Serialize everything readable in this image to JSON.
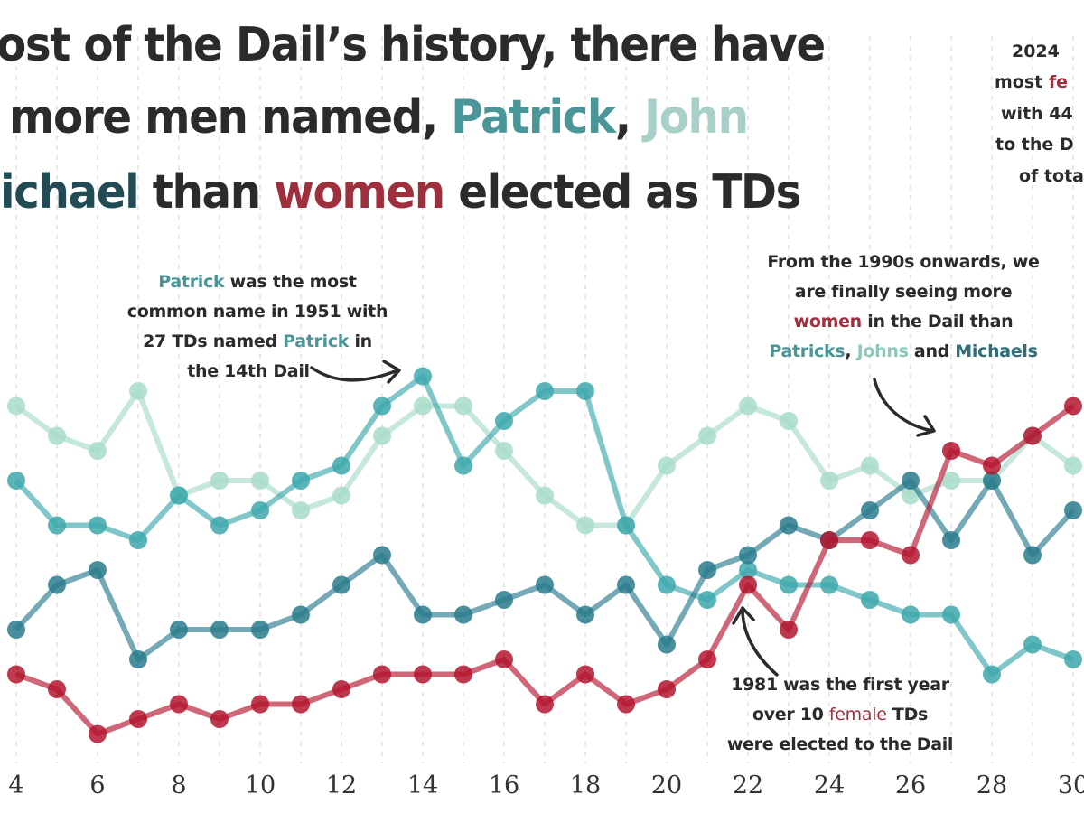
{
  "title": {
    "line1": "ost of the Dail’s history, there have",
    "line2_prefix": "more men named, ",
    "line2_patrick": "Patrick",
    "line2_comma": ", ",
    "line2_john": "John",
    "line3_michael": "ichael",
    "line3_than": " than ",
    "line3_women": "women",
    "line3_suffix": " elected as TDs"
  },
  "annotations": {
    "patrick_peak": {
      "l1_name": "Patrick",
      "l1_rest": " was the most",
      "l2": "common name in 1951 with",
      "l3_prefix": "27 TDs named ",
      "l3_name": "Patrick",
      "l3_suffix": " in",
      "l4": "the 14th Dail"
    },
    "nineties": {
      "l1": "From the 1990s onwards, we",
      "l2": "are finally seeing more",
      "l3_women": "women",
      "l3_rest": " in the Dail than",
      "l4_patricks": "Patricks",
      "l4_comma": ", ",
      "l4_johns": "Johns",
      "l4_and": " and ",
      "l4_michaels": "Michaels"
    },
    "first_ten": {
      "l1": "1981 was the first year",
      "l2_prefix": "over 10 ",
      "l2_female": "female",
      "l2_suffix": " TDs",
      "l3": "were elected to the Dail"
    },
    "record_2024": {
      "l1": "2024 ",
      "l2_prefix": "most ",
      "l2_fe": "fe",
      "l3": "with 44",
      "l4": "to the D",
      "l5": "of tota"
    }
  },
  "chart_data": {
    "type": "line",
    "title": "",
    "xlabel": "",
    "ylabel": "",
    "x_ticks": [
      4,
      6,
      8,
      10,
      12,
      14,
      16,
      18,
      20,
      22,
      24,
      26,
      28,
      30
    ],
    "xlim": [
      3,
      31
    ],
    "grid": "vertical dashed",
    "x": [
      4,
      5,
      6,
      7,
      8,
      9,
      10,
      11,
      12,
      13,
      14,
      15,
      16,
      17,
      18,
      19,
      20,
      21,
      22,
      23,
      24,
      25,
      26,
      27,
      28,
      29,
      30
    ],
    "series": [
      {
        "name": "John",
        "color": "#a8dcc9",
        "values": [
          25,
          23,
          22,
          26,
          19,
          20,
          20,
          18,
          19,
          23,
          25,
          25,
          22,
          19,
          17,
          17,
          21,
          23,
          25,
          24,
          20,
          21,
          19,
          20,
          20,
          23,
          21
        ]
      },
      {
        "name": "Patrick",
        "color": "#3ea8ac",
        "values": [
          20,
          17,
          17,
          16,
          19,
          17,
          18,
          20,
          21,
          25,
          27,
          21,
          24,
          26,
          26,
          17,
          13,
          12,
          14,
          13,
          13,
          12,
          11,
          11,
          7,
          9,
          8
        ]
      },
      {
        "name": "Michael",
        "color": "#2a7b8d",
        "values": [
          10,
          13,
          14,
          8,
          10,
          10,
          10,
          11,
          13,
          15,
          11,
          11,
          12,
          13,
          11,
          13,
          9,
          14,
          15,
          17,
          16,
          18,
          20,
          16,
          20,
          15,
          18
        ]
      },
      {
        "name": "women",
        "color": "#b3162f",
        "values": [
          7,
          6,
          3,
          4,
          5,
          4,
          5,
          5,
          6,
          7,
          7,
          7,
          8,
          5,
          7,
          5,
          6,
          8,
          13,
          10,
          16,
          16,
          15,
          22,
          21,
          23,
          25
        ]
      }
    ]
  }
}
